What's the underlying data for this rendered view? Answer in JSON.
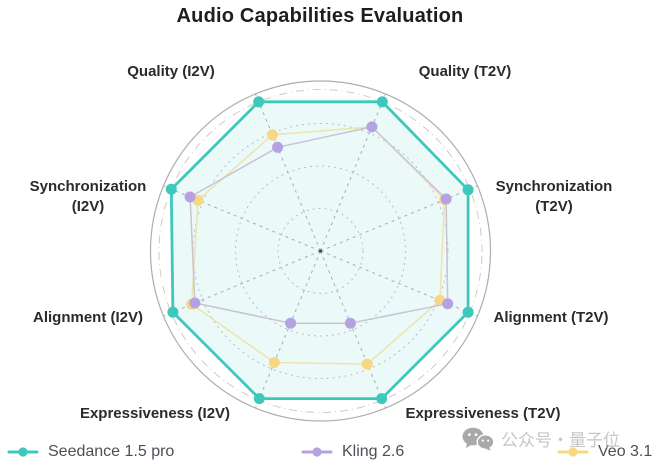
{
  "title": "Audio Capabilities Evaluation",
  "watermark": {
    "icon": "wechat-icon",
    "text": "公众号・量子位"
  },
  "colors": {
    "teal": "#3EC8BC",
    "teal_fill": "rgba(62,200,188,0.10)",
    "purple": "#B5A2E2",
    "purple_line": "#C9C3D6",
    "yellow": "#F8D784",
    "yellow_line": "#EDE4AB",
    "grid_ring": "#B6BFC4",
    "grid_spoke": "#A4AEB4",
    "outer_circle": "#ADADAD",
    "accent_ring": "#D8C8C0",
    "label_text": "#2B2B2E",
    "legend_text": "#4E4E58",
    "watermark_gray": "#C6C6C6"
  },
  "chart_data": {
    "type": "radar",
    "title": "Audio Capabilities Evaluation",
    "axes": [
      "Quality (I2V)",
      "Quality (T2V)",
      "Synchronization (T2V)",
      "Alignment (T2V)",
      "Expressiveness (T2V)",
      "Expressiveness (I2V)",
      "Alignment (I2V)",
      "Synchronization (I2V)"
    ],
    "scale": {
      "min": 0,
      "max": 1,
      "rings": [
        0.25,
        0.5,
        0.75
      ],
      "outer": 1.0,
      "accent_ring": 0.95
    },
    "legend_position": "bottom",
    "grid": "dotted-rings-and-dashed-spokes",
    "series": [
      {
        "name": "Seedance 1.5 pro",
        "values": [
          0.95,
          0.95,
          0.94,
          0.94,
          0.94,
          0.94,
          0.94,
          0.95
        ],
        "filled": true
      },
      {
        "name": "Kling 2.6",
        "values": [
          0.66,
          0.79,
          0.8,
          0.81,
          0.46,
          0.46,
          0.8,
          0.83
        ],
        "filled": false
      },
      {
        "name": "Veo 3.1",
        "values": [
          0.74,
          0.79,
          0.79,
          0.76,
          0.72,
          0.71,
          0.82,
          0.78
        ],
        "filled": false
      }
    ]
  }
}
